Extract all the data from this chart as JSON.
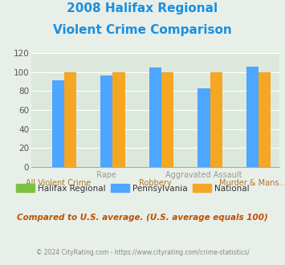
{
  "title_line1": "2008 Halifax Regional",
  "title_line2": "Violent Crime Comparison",
  "title_color": "#1a8fe0",
  "categories": [
    "All Violent Crime",
    "Rape",
    "Robbery",
    "Aggravated Assault",
    "Murder & Mans..."
  ],
  "xtick_row1": [
    "",
    "Rape",
    "",
    "Aggravated Assault",
    ""
  ],
  "xtick_row2": [
    "All Violent Crime",
    "",
    "Robbery",
    "",
    "Murder & Mans..."
  ],
  "halifax_values": [
    0,
    0,
    0,
    0,
    0
  ],
  "pennsylvania_values": [
    91,
    96,
    105,
    83,
    106
  ],
  "national_values": [
    100,
    100,
    100,
    100,
    100
  ],
  "halifax_color": "#7dc142",
  "pennsylvania_color": "#4da6ff",
  "national_color": "#f5a623",
  "ylim": [
    0,
    120
  ],
  "yticks": [
    0,
    20,
    40,
    60,
    80,
    100,
    120
  ],
  "bg_color": "#e8efe8",
  "plot_bg_color": "#dce8dc",
  "legend_labels": [
    "Halifax Regional",
    "Pennsylvania",
    "National"
  ],
  "footer_text1": "Compared to U.S. average. (U.S. average equals 100)",
  "footer_text2": "© 2024 CityRating.com - https://www.cityrating.com/crime-statistics/",
  "footer_color1": "#c05000",
  "footer_color2": "#888888",
  "xtick_row1_color": "#999999",
  "xtick_row2_color": "#b07820",
  "bar_width": 0.25
}
